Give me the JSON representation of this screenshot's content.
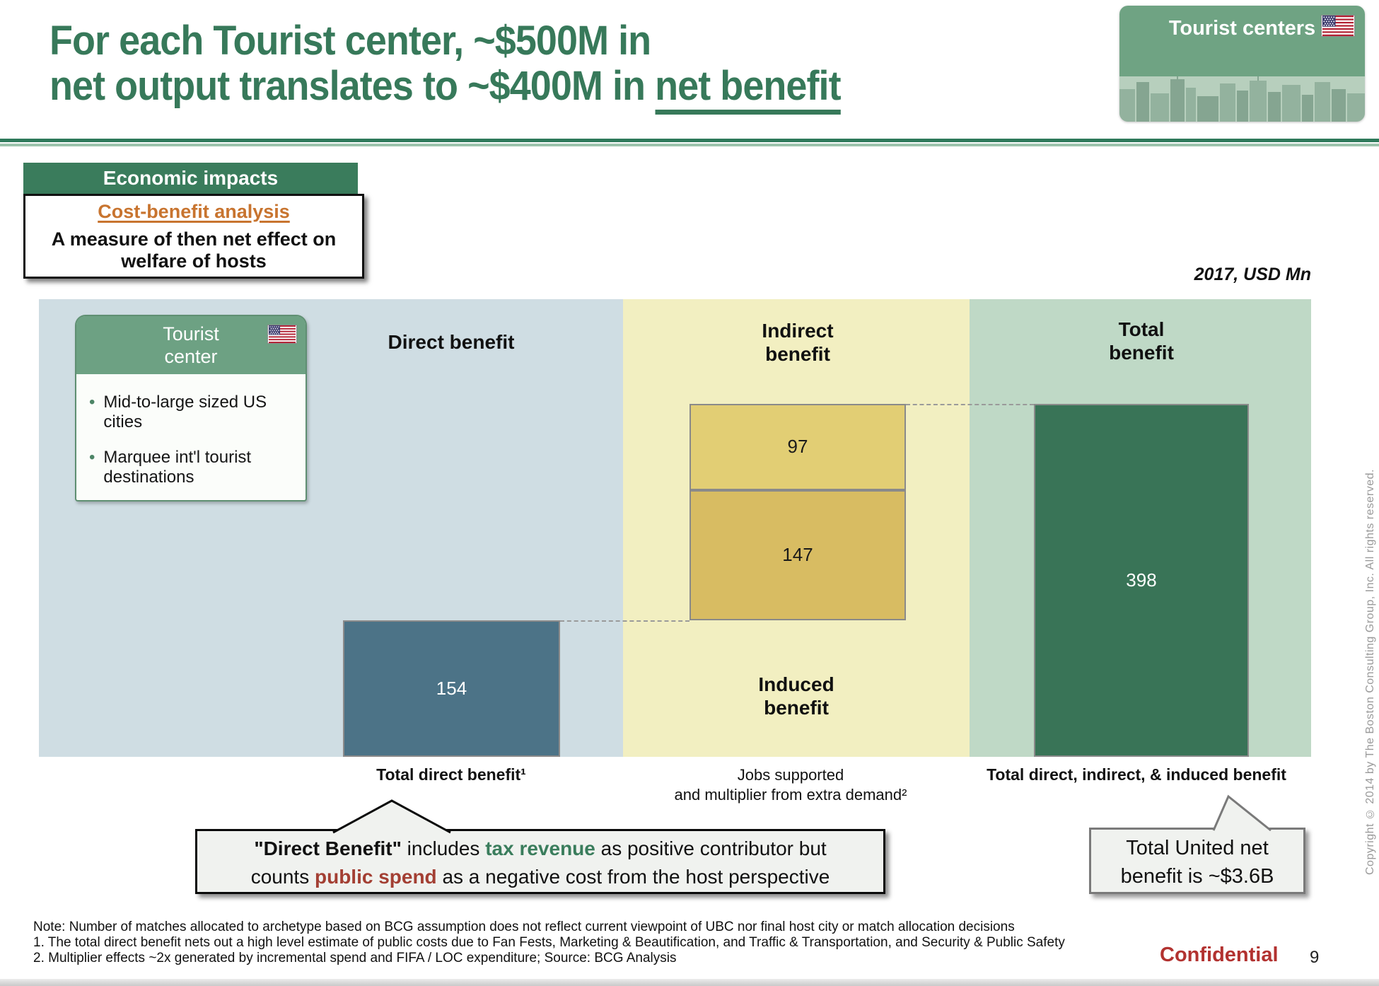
{
  "title": {
    "line1": "For each Tourist center, ~$500M in",
    "line2_prefix": "net output translates to ~$400M in ",
    "line2_underlined": "net benefit"
  },
  "corner_badge": {
    "label": "Tourist centers"
  },
  "topic_box": {
    "header": "Economic impacts",
    "subheader": "Cost-benefit analysis",
    "description": "A measure of then net effect on welfare of hosts"
  },
  "units_label": "2017, USD Mn",
  "archetype_card": {
    "title": "Tourist center",
    "bullets": [
      "Mid-to-large sized US cities",
      "Marquee int'l tourist destinations"
    ]
  },
  "chart_data": {
    "type": "bar",
    "subtype": "stacked-waterfall",
    "title": "2017, USD Mn",
    "column_headers": {
      "direct": "Direct benefit",
      "indirect": "Indirect benefit",
      "induced": "Induced benefit",
      "total": "Total benefit"
    },
    "bars": [
      {
        "id": "direct",
        "value": 154,
        "color": "#4C7387",
        "label_color": "#ffffff"
      },
      {
        "id": "induced",
        "value": 147,
        "color": "#D8BC62",
        "label_color": "#1a1a1a"
      },
      {
        "id": "indirect",
        "value": 97,
        "color": "#E2CE74",
        "label_color": "#1a1a1a"
      },
      {
        "id": "total",
        "value": 398,
        "color": "#397457",
        "label_color": "#ffffff"
      }
    ],
    "relationship": "154 + 147 + 97 = 398",
    "ylim": [
      0,
      516
    ],
    "axis_labels": {
      "direct": "Total direct benefit¹",
      "middle_line1": "Jobs supported",
      "middle_line2": "and multiplier from extra demand²",
      "total": "Total direct, indirect, & induced benefit"
    }
  },
  "callout_left": {
    "l1_bold": "\"Direct Benefit\"",
    "l1_text": " includes ",
    "l1_green": "tax revenue",
    "l1_rest": " as positive contributor but",
    "l2_text": "counts ",
    "l2_red": "public spend",
    "l2_rest": " as a negative cost from the host perspective"
  },
  "callout_right": {
    "line1": "Total United net",
    "line2": "benefit is ~$3.6B"
  },
  "notes": [
    "Note: Number of matches allocated to archetype based on BCG assumption does not reflect current viewpoint of UBC nor final host city or match allocation decisions",
    "1. The total direct benefit nets out a high level estimate of public costs due to  Fan Fests, Marketing & Beautification, and Traffic & Transportation, and Security & Public Safety",
    "2. Multiplier effects ~2x generated by incremental spend and FIFA / LOC expenditure; Source: BCG Analysis"
  ],
  "footer": {
    "confidential": "Confidential",
    "page_number": "9"
  },
  "copyright": "Copyright © 2014 by The Boston Consulting Group, Inc. All rights reserved.",
  "colors": {
    "brand_green": "#37795A",
    "muted_green": "#6FA383",
    "accent_orange": "#C8742F",
    "tax_revenue_green": "#3A7D5C",
    "public_spend_red": "#A33F33",
    "confidential_red": "#B23230",
    "col_bg_blue": "#CFDDE3",
    "col_bg_yellow": "#F2EFC1",
    "col_bg_green": "#BFD9C6"
  }
}
